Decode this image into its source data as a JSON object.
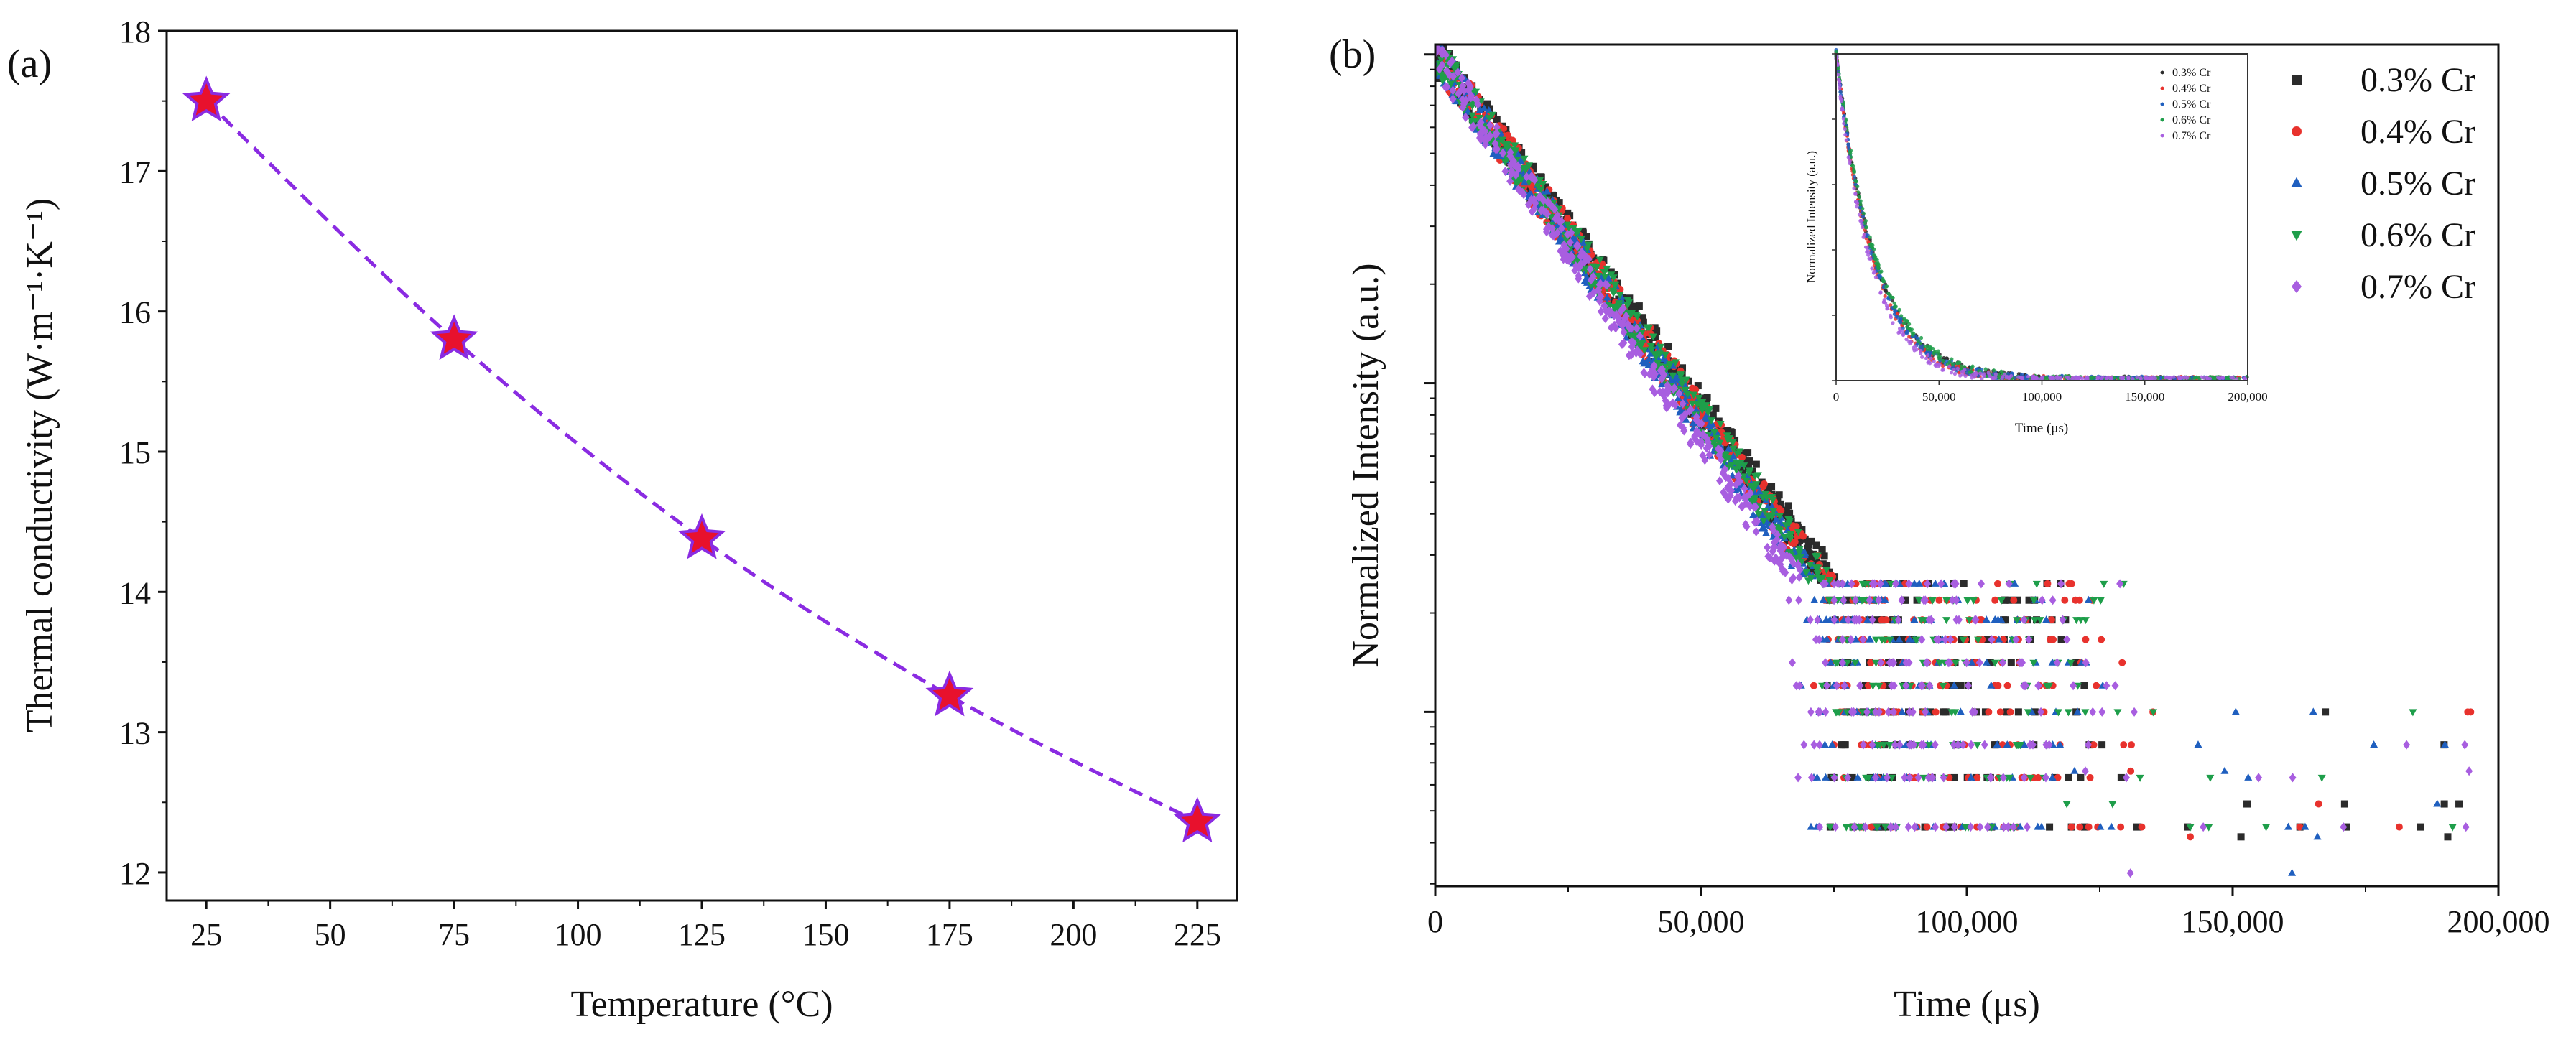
{
  "chart_data": [
    {
      "type": "line",
      "panel_label": "(a)",
      "title": "",
      "xlabel": "Temperature (°C)",
      "ylabel": "Thermal conductivity (W·m⁻¹·K⁻¹)",
      "xlim": [
        17,
        233
      ],
      "ylim": [
        11.8,
        18
      ],
      "xticks": [
        25,
        50,
        75,
        100,
        125,
        150,
        175,
        200,
        225
      ],
      "yticks": [
        12,
        13,
        14,
        15,
        16,
        17,
        18
      ],
      "series": [
        {
          "name": "Thermal conductivity",
          "x": [
            25,
            75,
            125,
            175,
            225
          ],
          "y": [
            17.5,
            15.8,
            14.38,
            13.26,
            12.36
          ],
          "marker": "star",
          "marker_color": "#e8112d",
          "marker_edge": "#8a2be2",
          "line_color": "#8a2be2",
          "line_style": "dashed"
        }
      ],
      "grid": false,
      "legend": "none"
    },
    {
      "type": "scatter",
      "panel_label": "(b)",
      "title": "",
      "xlabel": "Time (μs)",
      "ylabel": "Normalized Intensity (a.u.)",
      "x_scale": "linear",
      "y_scale": "log",
      "xlim": [
        0,
        200000
      ],
      "ylim_decades": [
        -2.53,
        0.03
      ],
      "xtick_labels": [
        "0",
        "50,000",
        "100,000",
        "150,000",
        "200,000"
      ],
      "xticks": [
        0,
        50000,
        100000,
        150000,
        200000
      ],
      "legend_position": "top-right",
      "series": [
        {
          "name": "0.3% Cr",
          "color": "#2b2b2b",
          "marker": "square",
          "decay_slope_per_100k": 2.15
        },
        {
          "name": "0.4% Cr",
          "color": "#e8322d",
          "marker": "circle",
          "decay_slope_per_100k": 2.2
        },
        {
          "name": "0.5% Cr",
          "color": "#1f5fbf",
          "marker": "triangle-up",
          "decay_slope_per_100k": 2.25
        },
        {
          "name": "0.6% Cr",
          "color": "#1e9e4a",
          "marker": "triangle-down",
          "decay_slope_per_100k": 2.2
        },
        {
          "name": "0.7% Cr",
          "color": "#a85ee0",
          "marker": "diamond",
          "decay_slope_per_100k": 2.35
        }
      ],
      "inset": {
        "type": "scatter",
        "xlabel": "Time (μs)",
        "ylabel": "Normalized Intensity (a.u.)",
        "x_scale": "linear",
        "y_scale": "linear",
        "xlim": [
          0,
          200000
        ],
        "ylim": [
          0,
          1
        ],
        "xtick_labels": [
          "0",
          "50,000",
          "100,000",
          "150,000",
          "200,000"
        ],
        "xticks": [
          0,
          50000,
          100000,
          150000,
          200000
        ],
        "legend": [
          "0.3% Cr",
          "0.4% Cr",
          "0.5% Cr",
          "0.6% Cr",
          "0.7% Cr"
        ]
      }
    }
  ]
}
